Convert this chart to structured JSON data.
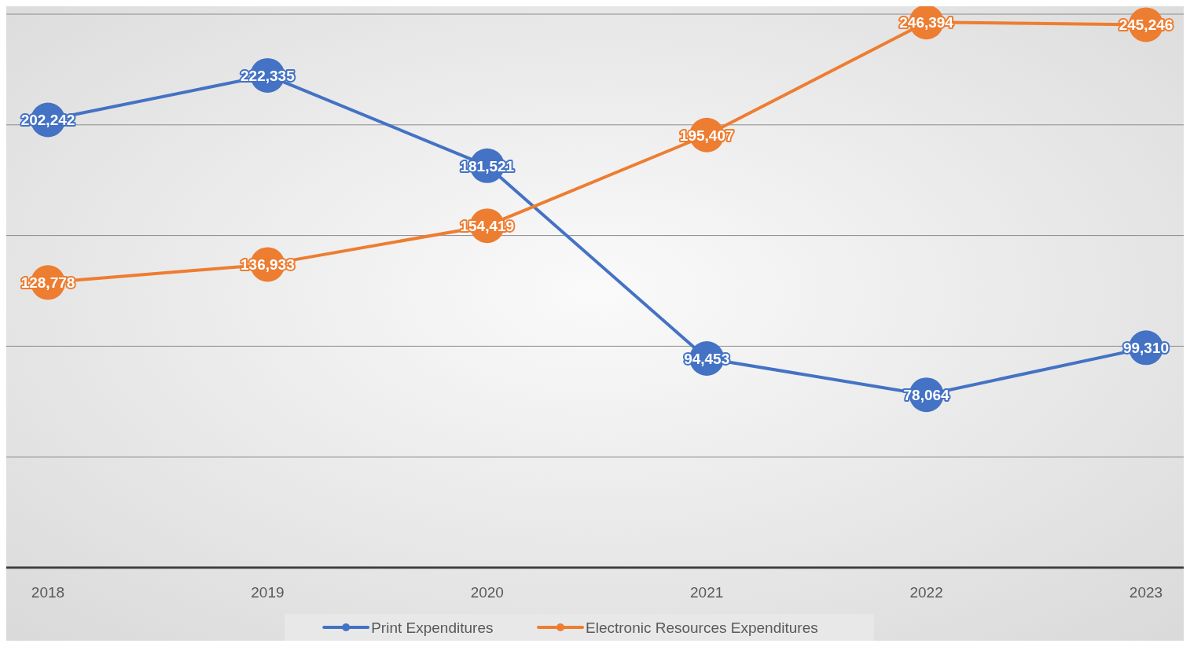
{
  "chart_data": {
    "type": "line",
    "categories": [
      "2018",
      "2019",
      "2020",
      "2021",
      "2022",
      "2023"
    ],
    "series": [
      {
        "name": "Print Expenditures",
        "color": "#4472c4",
        "values": [
          202242,
          222335,
          181521,
          94453,
          78064,
          99310
        ],
        "value_labels": [
          "202,242",
          "222,335",
          "181,521",
          "94,453",
          "78,064",
          "99,310"
        ]
      },
      {
        "name": "Electronic Resources Expenditures",
        "color": "#ed7d31",
        "values": [
          128778,
          136933,
          154419,
          195407,
          246394,
          245246
        ],
        "value_labels": [
          "128,778",
          "136,933",
          "154,419",
          "195,407",
          "246,394",
          "245,246"
        ]
      }
    ],
    "ylim": [
      0,
      250000
    ],
    "yticks": [
      {
        "value": 0,
        "label": null
      },
      {
        "value": 50000,
        "label": null
      },
      {
        "value": 100000,
        "label": null
      },
      {
        "value": 150000,
        "label": null
      },
      {
        "value": 200000,
        "label": null
      },
      {
        "value": 250000,
        "label": null
      }
    ],
    "tick_labels": "x",
    "grid": "y",
    "legend": "bottom",
    "marker": "circle",
    "line_style": "solid"
  }
}
